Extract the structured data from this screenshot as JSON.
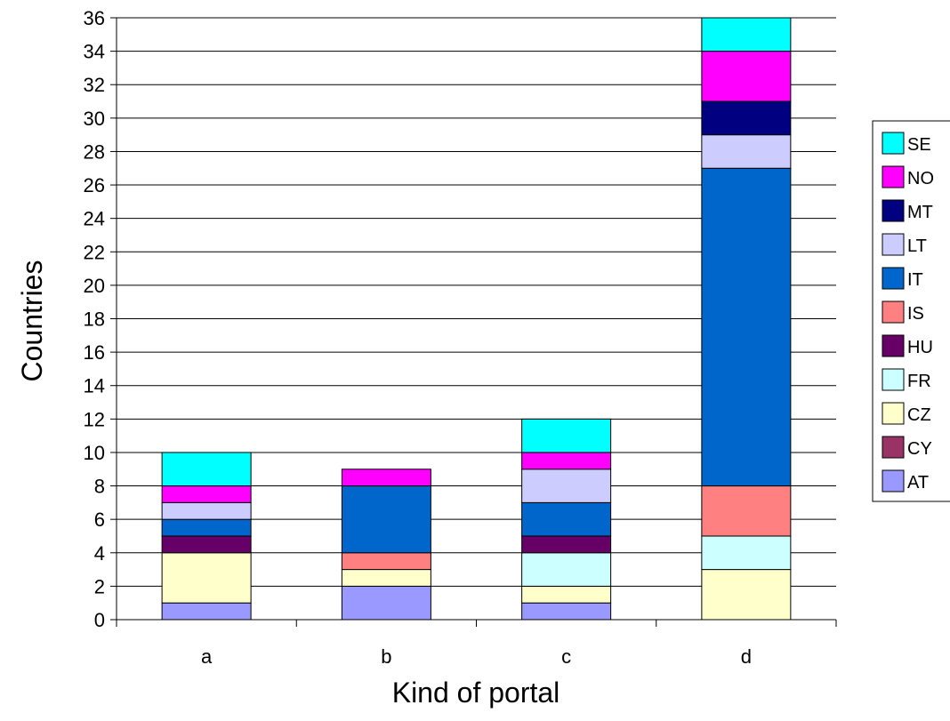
{
  "chart_data": {
    "type": "bar",
    "stacked": true,
    "categories": [
      "a",
      "b",
      "c",
      "d"
    ],
    "xlabel": "Kind of portal",
    "ylabel": "Countries",
    "ylim": [
      0,
      36
    ],
    "ytick_step": 2,
    "grid": true,
    "legend_position": "right",
    "series": [
      {
        "name": "AT",
        "color": "#9999ff",
        "values": [
          1,
          2,
          1,
          0
        ]
      },
      {
        "name": "CY",
        "color": "#993366",
        "values": [
          0,
          0,
          0,
          0
        ]
      },
      {
        "name": "CZ",
        "color": "#ffffcc",
        "values": [
          3,
          1,
          1,
          3
        ]
      },
      {
        "name": "FR",
        "color": "#ccffff",
        "values": [
          0,
          0,
          2,
          2
        ]
      },
      {
        "name": "HU",
        "color": "#660066",
        "values": [
          1,
          0,
          1,
          0
        ]
      },
      {
        "name": "IS",
        "color": "#ff8080",
        "values": [
          0,
          1,
          0,
          3
        ]
      },
      {
        "name": "IT",
        "color": "#0066cc",
        "values": [
          1,
          4,
          2,
          19
        ]
      },
      {
        "name": "LT",
        "color": "#ccccff",
        "values": [
          1,
          0,
          2,
          2
        ]
      },
      {
        "name": "MT",
        "color": "#000080",
        "values": [
          0,
          0,
          0,
          2
        ]
      },
      {
        "name": "NO",
        "color": "#ff00ff",
        "values": [
          1,
          1,
          1,
          3
        ]
      },
      {
        "name": "SE",
        "color": "#00ffff",
        "values": [
          2,
          0,
          2,
          2
        ]
      }
    ]
  }
}
